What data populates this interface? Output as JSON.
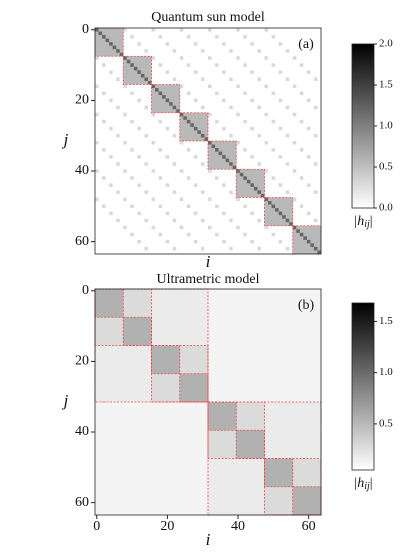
{
  "panels": [
    {
      "type": "heatmap",
      "title": "Quantum sun model",
      "label": "(a)",
      "xlabel": "i",
      "ylabel": "j",
      "lim": [
        -0.5,
        63.5
      ],
      "yticks": [
        0,
        20,
        40,
        60
      ],
      "clim": [
        0,
        2
      ],
      "cbar_ticks": [
        {
          "value": 0,
          "label": "0.0"
        },
        {
          "value": 0.5,
          "label": "0.5"
        },
        {
          "value": 1,
          "label": "1.0"
        },
        {
          "value": 1.5,
          "label": "1.5"
        },
        {
          "value": 2,
          "label": "2.0"
        }
      ],
      "cbar_label": [
        "|h",
        "ij",
        "|"
      ],
      "blocks": {
        "starts": [
          0,
          8,
          16,
          24,
          32,
          40,
          48,
          56
        ],
        "size": 8,
        "value": 0.55,
        "diag_value": 1.2
      },
      "coupling": {
        "offsets": [
          8,
          16,
          24,
          32,
          40,
          48
        ],
        "value": 0.3
      }
    },
    {
      "type": "heatmap",
      "title": "Ultrametric model",
      "label": "(b)",
      "xlabel": "i",
      "ylabel": "j",
      "lim": [
        -0.5,
        63.5
      ],
      "xticks": [
        0,
        20,
        40,
        60
      ],
      "yticks": [
        0,
        20,
        40,
        60
      ],
      "clim": [
        0.05,
        1.68
      ],
      "cbar_ticks": [
        {
          "value": 0.5,
          "label": "0.5"
        },
        {
          "value": 1,
          "label": "1.0"
        },
        {
          "value": 1.5,
          "label": "1.5"
        }
      ],
      "cbar_label": [
        "|h",
        "ij",
        "|"
      ],
      "levels": [
        {
          "size": 64,
          "value": 0.12
        },
        {
          "size": 32,
          "value": 0.18
        },
        {
          "size": 16,
          "value": 0.28
        },
        {
          "size": 8,
          "value": 0.55
        }
      ]
    }
  ]
}
